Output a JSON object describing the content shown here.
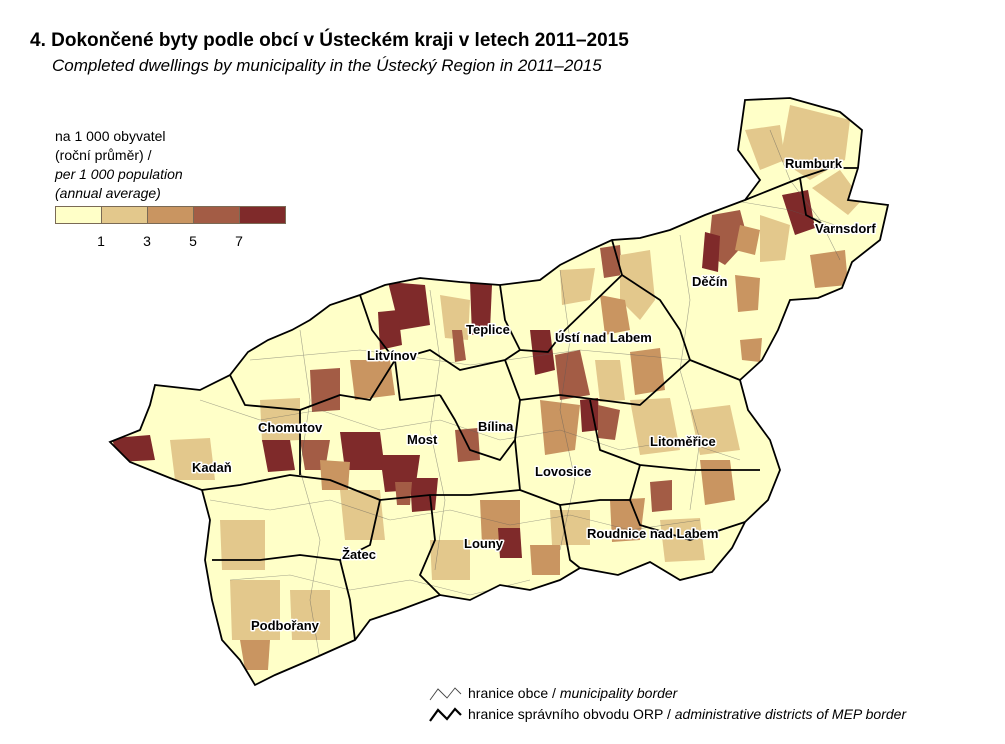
{
  "title": {
    "cs": "4. Dokončené byty podle obcí v Ústeckém kraji v letech 2011–2015",
    "en": "Completed dwellings by municipality in the Ústecký Region in 2011–2015"
  },
  "legend": {
    "line1": "na 1 000 obyvatel",
    "line2": "(roční průměr) /",
    "line3": "per 1 000 population",
    "line4": "(annual average)",
    "colors": [
      "#ffffc8",
      "#e3c88c",
      "#c99561",
      "#a35c45",
      "#7f2a2a"
    ],
    "ticks": [
      "1",
      "3",
      "5",
      "7"
    ]
  },
  "border_legend": {
    "municipality_cs": "hranice obce / ",
    "municipality_en": "municipality border",
    "district_cs": "hranice správního obvodu ORP / ",
    "district_en": "administrative districts of MEP border"
  },
  "map": {
    "districts": [
      "Rumburk",
      "Varnsdorf",
      "Děčín",
      "Teplice",
      "Ústí nad Labem",
      "Litvínov",
      "Chomutov",
      "Most",
      "Bílina",
      "Kadaň",
      "Lovosice",
      "Litoměřice",
      "Roudnice nad Labem",
      "Louny",
      "Žatec",
      "Podbořany"
    ]
  }
}
